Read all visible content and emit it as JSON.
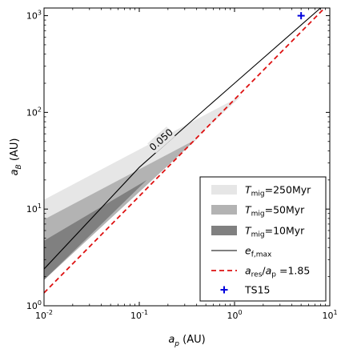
{
  "chart_data": {
    "type": "area",
    "x_scale": "log",
    "y_scale": "log",
    "xlim": [
      0.01,
      10
    ],
    "ylim": [
      1,
      1200
    ],
    "xlabel": {
      "var": "a",
      "sub": "p",
      "unit": " (AU)"
    },
    "ylabel": {
      "var": "a",
      "sub": "B",
      "unit": " (AU)"
    },
    "x_ticks": [
      {
        "value": 0.01,
        "base": "10",
        "exp": "-2"
      },
      {
        "value": 0.1,
        "base": "10",
        "exp": "-1"
      },
      {
        "value": 1,
        "base": "10",
        "exp": "0"
      },
      {
        "value": 10,
        "base": "10",
        "exp": "1"
      }
    ],
    "y_ticks": [
      {
        "value": 1,
        "base": "10",
        "exp": "0"
      },
      {
        "value": 10,
        "base": "10",
        "exp": "1"
      },
      {
        "value": 100,
        "base": "10",
        "exp": "2"
      },
      {
        "value": 1000,
        "base": "10",
        "exp": "3"
      }
    ],
    "bands": [
      {
        "name": "T_mig=250Myr",
        "label_var": "T",
        "label_sub": "mig",
        "label_rest": "=250Myr",
        "color": "#e6e6e6",
        "upper": [
          [
            0.01,
            12.5
          ],
          [
            1.2,
            150
          ]
        ],
        "lower": [
          [
            0.01,
            1.85
          ],
          [
            1.2,
            150
          ]
        ]
      },
      {
        "name": "T_mig=50Myr",
        "label_var": "T",
        "label_sub": "mig",
        "label_rest": "=50Myr",
        "color": "#b3b3b3",
        "upper": [
          [
            0.01,
            7.8
          ],
          [
            0.4,
            53
          ]
        ],
        "lower": [
          [
            0.01,
            1.85
          ],
          [
            0.4,
            53
          ]
        ]
      },
      {
        "name": "T_mig=10Myr",
        "label_var": "T",
        "label_sub": "mig",
        "label_rest": "=10Myr",
        "color": "#808080",
        "upper": [
          [
            0.01,
            4.7
          ],
          [
            0.12,
            20
          ]
        ],
        "lower": [
          [
            0.01,
            1.85
          ],
          [
            0.12,
            20
          ]
        ]
      }
    ],
    "lines": [
      {
        "name": "e_f,max",
        "label_var": "e",
        "label_sub": "f,max",
        "label_rest": "",
        "color": "#000000",
        "style": "solid",
        "points": [
          [
            0.01,
            2.4
          ],
          [
            0.1,
            27
          ],
          [
            0.5,
            110
          ],
          [
            1,
            200
          ],
          [
            8,
            1200
          ]
        ]
      },
      {
        "name": "a_res/a_p=1.85",
        "label_var": "a",
        "label_sub": "res",
        "label_rest": "/",
        "label_var2": "a",
        "label_sub2": "p",
        "label_rest2": " =1.85",
        "color": "#dd1111",
        "style": "dashed",
        "points": [
          [
            0.01,
            1.36
          ],
          [
            10,
            1360
          ]
        ]
      }
    ],
    "contour_label": {
      "text": "0.050",
      "x": 0.17,
      "y": 52
    },
    "markers": [
      {
        "name": "TS15",
        "label": "TS15",
        "symbol": "+",
        "color": "#0000dd",
        "x": 5.0,
        "y": 1000
      }
    ],
    "legend_position": "lower-right",
    "grid": false
  }
}
